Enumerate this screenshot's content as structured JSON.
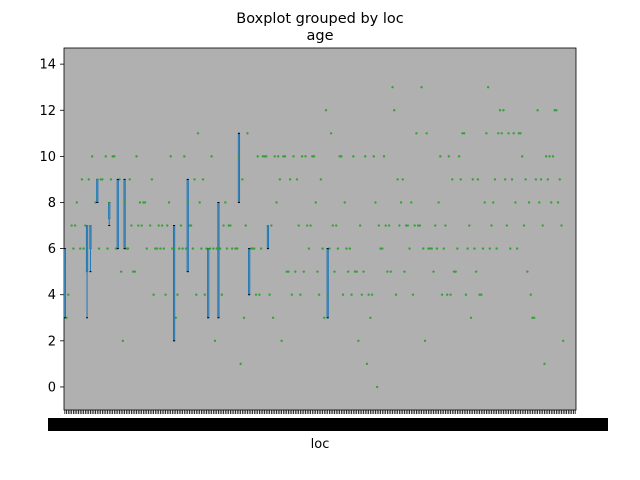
{
  "suptitle": "Boxplot grouped by loc",
  "chart_data": {
    "type": "boxplot",
    "title": "age",
    "xlabel": "loc",
    "ylabel": "",
    "ylim": [
      -1,
      14.7
    ],
    "yticks": [
      0,
      2,
      4,
      6,
      8,
      10,
      12,
      14
    ],
    "grid": false,
    "legend": "none",
    "plot_background": "#b0b0b0",
    "box_color": "#1f77b4",
    "median_color": "#2ca02c",
    "whisker_cap_color": "#000000",
    "n_categories_approx": 300,
    "boxes": [
      {
        "index": 0,
        "whislo": 3,
        "q1": 3,
        "med": 5,
        "q3": 6,
        "whishi": 6
      },
      {
        "index": 13,
        "whislo": 3,
        "q1": 5,
        "med": 7,
        "q3": 7,
        "whishi": 7
      },
      {
        "index": 15,
        "whislo": 5,
        "q1": 6,
        "med": 7,
        "q3": 7,
        "whishi": 7
      },
      {
        "index": 19,
        "whislo": 8,
        "q1": 8,
        "med": 9,
        "q3": 9,
        "whishi": 9
      },
      {
        "index": 26,
        "whislo": 7,
        "q1": 7.3,
        "med": 8,
        "q3": 8,
        "whishi": 8
      },
      {
        "index": 31,
        "whislo": 6,
        "q1": 6,
        "med": 7,
        "q3": 9,
        "whishi": 9
      },
      {
        "index": 35,
        "whislo": 6,
        "q1": 6,
        "med": 8,
        "q3": 9,
        "whishi": 9
      },
      {
        "index": 64,
        "whislo": 2,
        "q1": 2,
        "med": 6,
        "q3": 7,
        "whishi": 7
      },
      {
        "index": 72,
        "whislo": 5,
        "q1": 5,
        "med": 8,
        "q3": 9,
        "whishi": 9
      },
      {
        "index": 84,
        "whislo": 3,
        "q1": 3,
        "med": 6,
        "q3": 6,
        "whishi": 6
      },
      {
        "index": 90,
        "whislo": 3,
        "q1": 3,
        "med": 6,
        "q3": 8,
        "whishi": 8
      },
      {
        "index": 102,
        "whislo": 8,
        "q1": 8,
        "med": 10,
        "q3": 11,
        "whishi": 11
      },
      {
        "index": 108,
        "whislo": 4,
        "q1": 4,
        "med": 5,
        "q3": 6,
        "whishi": 6
      },
      {
        "index": 119,
        "whislo": 6,
        "q1": 6,
        "med": 7,
        "q3": 7,
        "whishi": 7
      },
      {
        "index": 154,
        "whislo": 3,
        "q1": 3,
        "med": 4,
        "q3": 6,
        "whishi": 6
      }
    ],
    "fliers": [
      [
        1,
        3
      ],
      [
        2,
        4
      ],
      [
        4,
        7
      ],
      [
        5,
        6
      ],
      [
        6,
        7
      ],
      [
        7,
        8
      ],
      [
        9,
        6
      ],
      [
        10,
        9
      ],
      [
        11,
        6
      ],
      [
        12,
        7
      ],
      [
        14,
        9
      ],
      [
        16,
        10
      ],
      [
        18,
        8
      ],
      [
        20,
        6
      ],
      [
        21,
        9
      ],
      [
        22,
        9
      ],
      [
        24,
        10
      ],
      [
        25,
        6
      ],
      [
        27,
        9
      ],
      [
        28,
        10
      ],
      [
        29,
        10
      ],
      [
        30,
        6
      ],
      [
        32,
        9
      ],
      [
        33,
        5
      ],
      [
        34,
        2
      ],
      [
        36,
        6
      ],
      [
        37,
        6
      ],
      [
        38,
        9
      ],
      [
        39,
        7
      ],
      [
        40,
        5
      ],
      [
        41,
        5
      ],
      [
        42,
        10
      ],
      [
        43,
        7
      ],
      [
        44,
        8
      ],
      [
        45,
        7
      ],
      [
        46,
        8
      ],
      [
        47,
        8
      ],
      [
        48,
        6
      ],
      [
        50,
        7
      ],
      [
        51,
        9
      ],
      [
        52,
        4
      ],
      [
        53,
        6
      ],
      [
        54,
        6
      ],
      [
        55,
        7
      ],
      [
        56,
        6
      ],
      [
        57,
        7
      ],
      [
        58,
        6
      ],
      [
        59,
        4
      ],
      [
        60,
        7
      ],
      [
        61,
        8
      ],
      [
        62,
        10
      ],
      [
        63,
        6
      ],
      [
        65,
        3
      ],
      [
        66,
        4
      ],
      [
        67,
        6
      ],
      [
        68,
        7
      ],
      [
        69,
        6
      ],
      [
        70,
        10
      ],
      [
        71,
        6
      ],
      [
        73,
        7
      ],
      [
        74,
        7
      ],
      [
        75,
        6
      ],
      [
        76,
        9
      ],
      [
        77,
        4
      ],
      [
        78,
        11
      ],
      [
        79,
        8
      ],
      [
        80,
        6
      ],
      [
        81,
        9
      ],
      [
        82,
        4
      ],
      [
        83,
        6
      ],
      [
        85,
        6
      ],
      [
        86,
        10
      ],
      [
        87,
        6
      ],
      [
        88,
        2
      ],
      [
        89,
        6
      ],
      [
        91,
        6
      ],
      [
        92,
        4
      ],
      [
        93,
        7
      ],
      [
        94,
        8
      ],
      [
        95,
        6
      ],
      [
        96,
        7
      ],
      [
        97,
        7
      ],
      [
        98,
        6
      ],
      [
        100,
        6
      ],
      [
        101,
        6
      ],
      [
        103,
        1
      ],
      [
        104,
        9
      ],
      [
        105,
        3
      ],
      [
        106,
        7
      ],
      [
        107,
        11
      ],
      [
        109,
        6
      ],
      [
        110,
        6
      ],
      [
        111,
        6
      ],
      [
        112,
        4
      ],
      [
        113,
        10
      ],
      [
        114,
        4
      ],
      [
        115,
        6
      ],
      [
        116,
        10
      ],
      [
        117,
        10
      ],
      [
        118,
        10
      ],
      [
        120,
        4
      ],
      [
        121,
        7
      ],
      [
        122,
        3
      ],
      [
        123,
        10
      ],
      [
        124,
        8
      ],
      [
        125,
        10
      ],
      [
        126,
        9
      ],
      [
        127,
        2
      ],
      [
        128,
        10
      ],
      [
        129,
        10
      ],
      [
        130,
        5
      ],
      [
        131,
        5
      ],
      [
        132,
        9
      ],
      [
        133,
        4
      ],
      [
        134,
        10
      ],
      [
        135,
        5
      ],
      [
        136,
        9
      ],
      [
        137,
        7
      ],
      [
        138,
        4
      ],
      [
        139,
        10
      ],
      [
        140,
        5
      ],
      [
        141,
        10
      ],
      [
        142,
        7
      ],
      [
        143,
        6
      ],
      [
        144,
        7
      ],
      [
        145,
        10
      ],
      [
        146,
        10
      ],
      [
        147,
        8
      ],
      [
        148,
        5
      ],
      [
        149,
        4
      ],
      [
        150,
        9
      ],
      [
        151,
        6
      ],
      [
        152,
        3
      ],
      [
        153,
        12
      ],
      [
        155,
        6
      ],
      [
        156,
        11
      ],
      [
        157,
        7
      ],
      [
        158,
        5
      ],
      [
        159,
        7
      ],
      [
        160,
        6
      ],
      [
        161,
        10
      ],
      [
        162,
        10
      ],
      [
        163,
        4
      ],
      [
        164,
        8
      ],
      [
        165,
        6
      ],
      [
        166,
        5
      ],
      [
        167,
        6
      ],
      [
        168,
        4
      ],
      [
        169,
        10
      ],
      [
        170,
        5
      ],
      [
        171,
        5
      ],
      [
        172,
        2
      ],
      [
        173,
        7
      ],
      [
        174,
        4
      ],
      [
        175,
        5
      ],
      [
        176,
        10
      ],
      [
        177,
        1
      ],
      [
        178,
        4
      ],
      [
        179,
        3
      ],
      [
        180,
        4
      ],
      [
        181,
        10
      ],
      [
        182,
        8
      ],
      [
        183,
        0
      ],
      [
        184,
        7
      ],
      [
        185,
        6
      ],
      [
        186,
        6
      ],
      [
        187,
        10
      ],
      [
        188,
        7
      ],
      [
        189,
        5
      ],
      [
        190,
        7
      ],
      [
        191,
        5
      ],
      [
        192,
        13
      ],
      [
        193,
        12
      ],
      [
        194,
        4
      ],
      [
        195,
        9
      ],
      [
        196,
        7
      ],
      [
        197,
        8
      ],
      [
        198,
        9
      ],
      [
        199,
        5
      ],
      [
        200,
        7
      ],
      [
        201,
        7
      ],
      [
        202,
        6
      ],
      [
        203,
        8
      ],
      [
        204,
        4
      ],
      [
        205,
        7
      ],
      [
        206,
        11
      ],
      [
        207,
        7
      ],
      [
        208,
        7
      ],
      [
        209,
        13
      ],
      [
        210,
        6
      ],
      [
        211,
        2
      ],
      [
        212,
        11
      ],
      [
        213,
        6
      ],
      [
        214,
        6
      ],
      [
        215,
        6
      ],
      [
        216,
        5
      ],
      [
        217,
        7
      ],
      [
        218,
        6
      ],
      [
        219,
        8
      ],
      [
        220,
        10
      ],
      [
        221,
        4
      ],
      [
        222,
        6
      ],
      [
        223,
        7
      ],
      [
        224,
        4
      ],
      [
        225,
        10
      ],
      [
        226,
        4
      ],
      [
        227,
        9
      ],
      [
        228,
        5
      ],
      [
        229,
        5
      ],
      [
        230,
        6
      ],
      [
        231,
        10
      ],
      [
        232,
        9
      ],
      [
        233,
        11
      ],
      [
        234,
        11
      ],
      [
        235,
        4
      ],
      [
        236,
        6
      ],
      [
        237,
        7
      ],
      [
        238,
        3
      ],
      [
        239,
        9
      ],
      [
        240,
        6
      ],
      [
        241,
        5
      ],
      [
        242,
        9
      ],
      [
        243,
        4
      ],
      [
        244,
        4
      ],
      [
        245,
        6
      ],
      [
        246,
        8
      ],
      [
        247,
        11
      ],
      [
        248,
        13
      ],
      [
        249,
        6
      ],
      [
        250,
        7
      ],
      [
        251,
        8
      ],
      [
        252,
        9
      ],
      [
        253,
        6
      ],
      [
        254,
        11
      ],
      [
        255,
        12
      ],
      [
        256,
        11
      ],
      [
        257,
        12
      ],
      [
        258,
        9
      ],
      [
        259,
        7
      ],
      [
        260,
        11
      ],
      [
        261,
        6
      ],
      [
        262,
        9
      ],
      [
        263,
        11
      ],
      [
        264,
        8
      ],
      [
        265,
        6
      ],
      [
        266,
        11
      ],
      [
        267,
        11
      ],
      [
        268,
        10
      ],
      [
        269,
        7
      ],
      [
        270,
        9
      ],
      [
        271,
        5
      ],
      [
        272,
        8
      ],
      [
        273,
        4
      ],
      [
        274,
        3
      ],
      [
        275,
        3
      ],
      [
        276,
        9
      ],
      [
        277,
        12
      ],
      [
        278,
        8
      ],
      [
        279,
        9
      ],
      [
        280,
        7
      ],
      [
        281,
        1
      ],
      [
        282,
        10
      ],
      [
        283,
        9
      ],
      [
        284,
        10
      ],
      [
        285,
        8
      ],
      [
        286,
        10
      ],
      [
        287,
        12
      ],
      [
        288,
        12
      ],
      [
        289,
        8
      ],
      [
        290,
        9
      ],
      [
        291,
        7
      ],
      [
        292,
        2
      ]
    ]
  }
}
